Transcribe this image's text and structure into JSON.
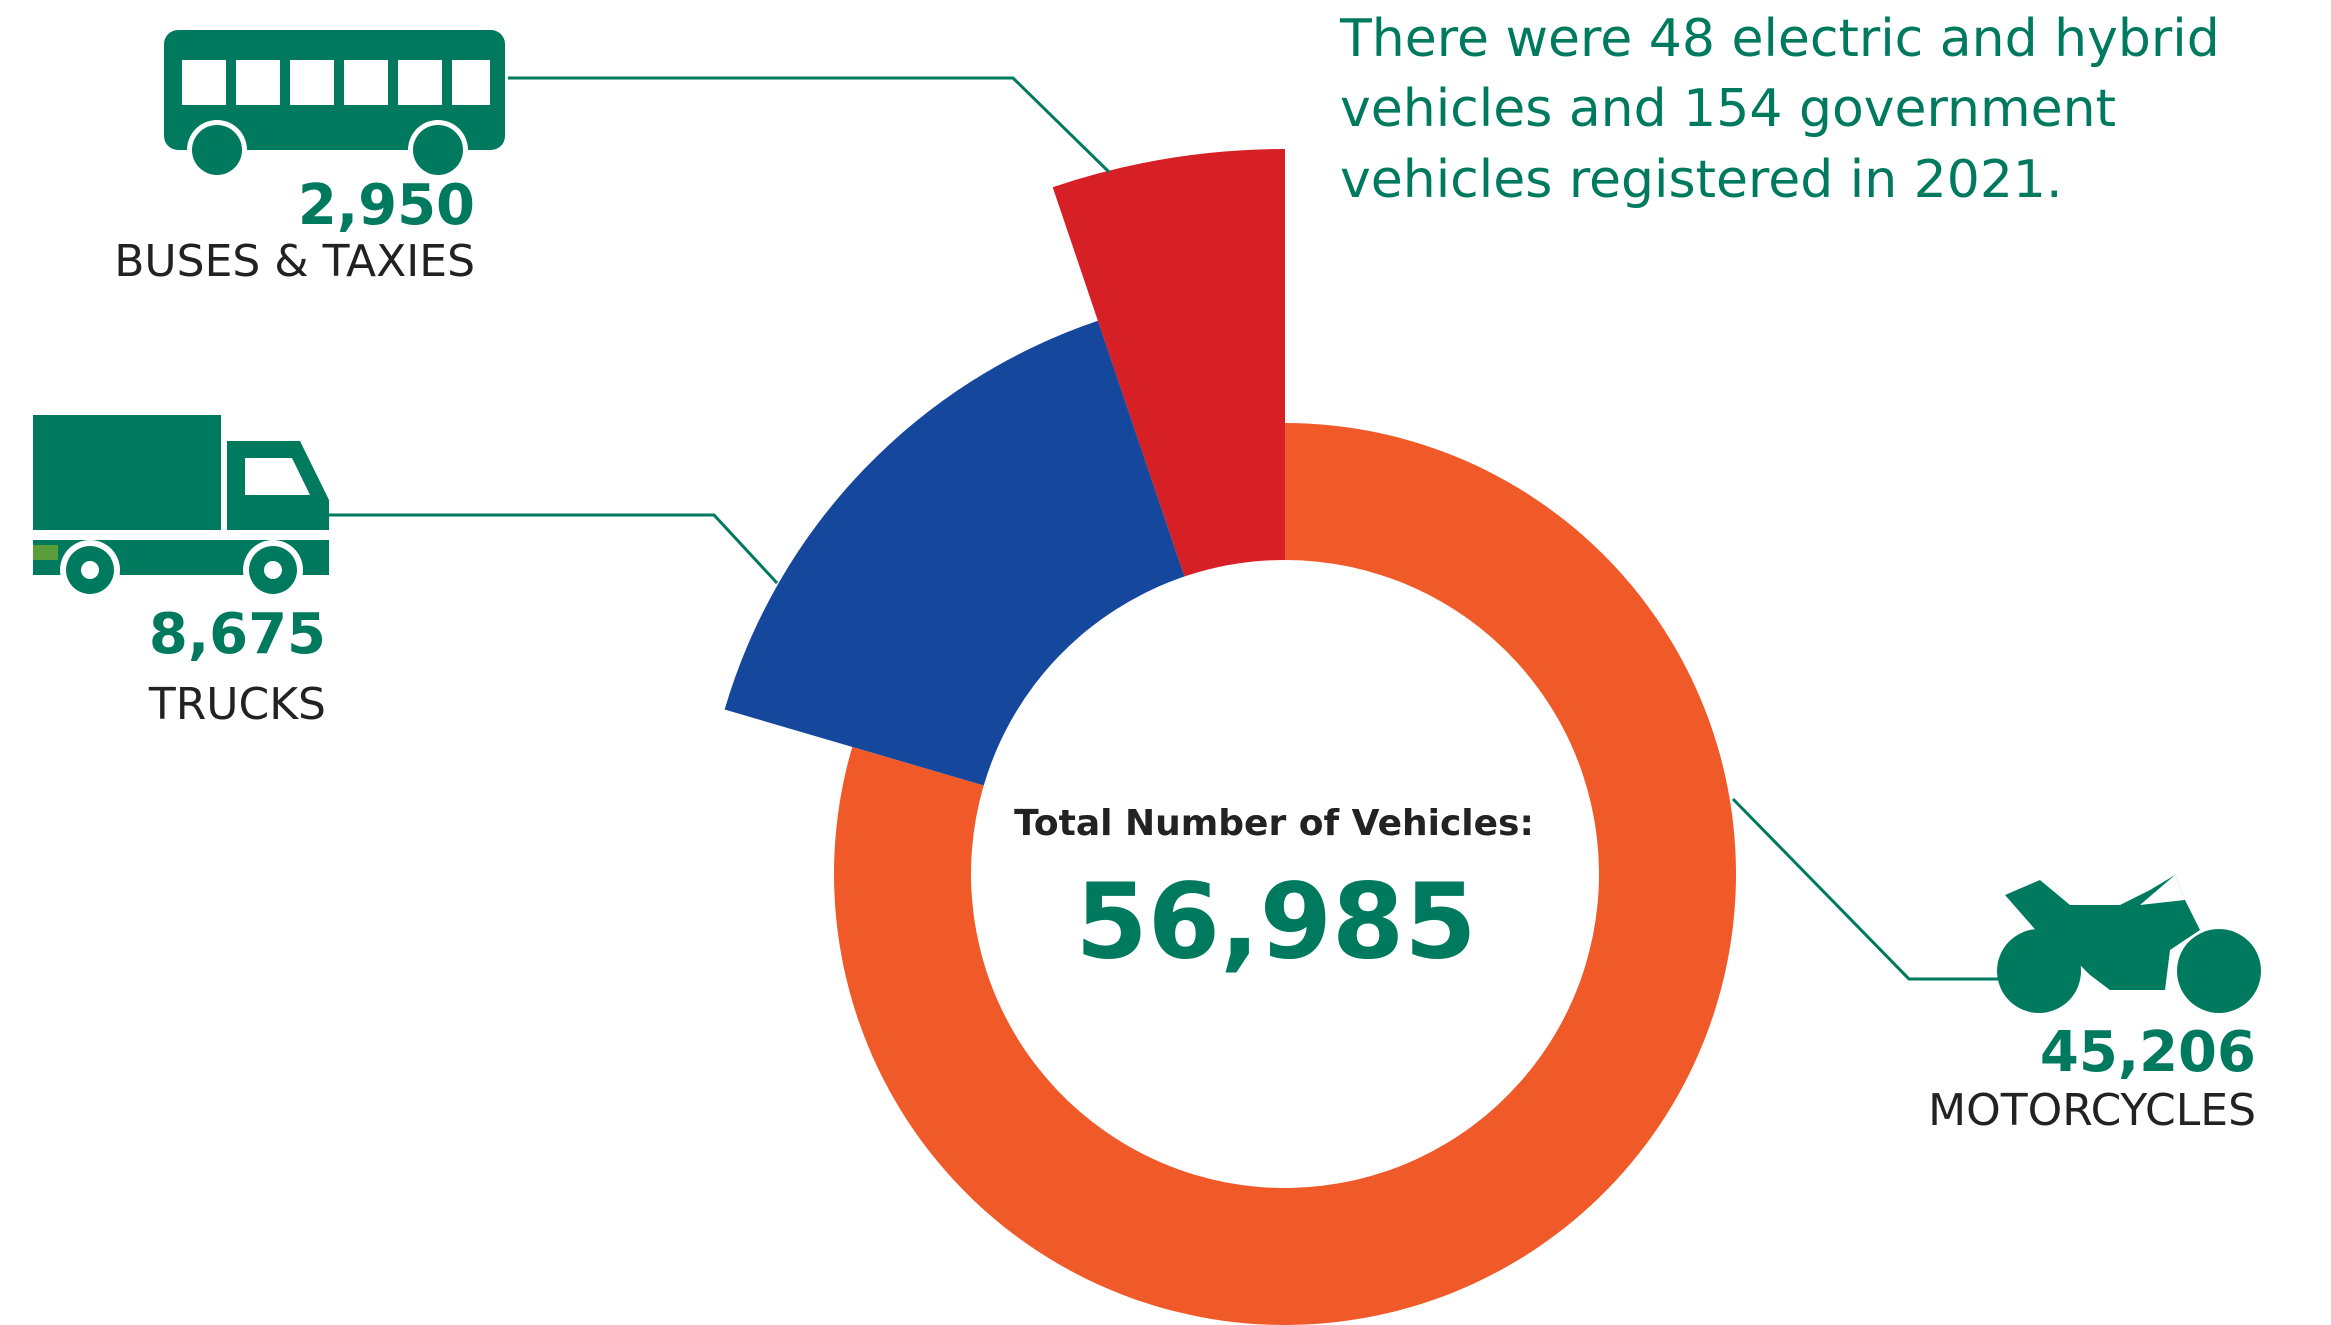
{
  "chart_data": {
    "type": "donut",
    "annotation": [
      "There were 48 electric and hybrid",
      "vehicles and 154 government",
      "vehicles registered in 2021."
    ],
    "center_title": "Total Number of Vehicles:",
    "center_value": "56,985",
    "categories": [
      "MOTORCYCLES",
      "TRUCKS",
      "BUSES & TAXIES"
    ],
    "values": [
      45206,
      8675,
      2950
    ],
    "value_labels": [
      "45,206",
      "8,675",
      "2,950"
    ],
    "colors": [
      "#f05a28",
      "#15479c",
      "#d71f26"
    ]
  }
}
